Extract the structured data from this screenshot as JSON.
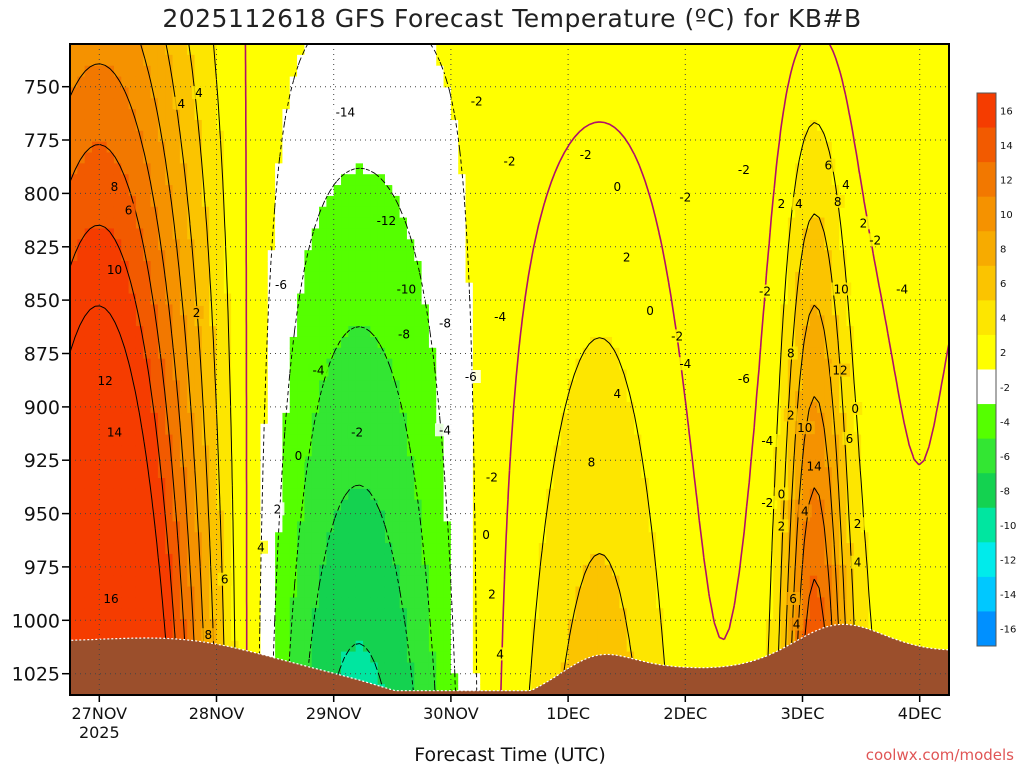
{
  "chart_data": {
    "type": "heatmap",
    "title": "2025112618 GFS Forecast Temperature (ºC) for KB#B",
    "xlabel": "Forecast Time (UTC)",
    "ylabel": "",
    "credit": "coolwx.com/models",
    "x_ticks": [
      {
        "label": "27NOV",
        "sub": "2025",
        "day": 0
      },
      {
        "label": "28NOV",
        "sub": "",
        "day": 1
      },
      {
        "label": "29NOV",
        "sub": "",
        "day": 2
      },
      {
        "label": "30NOV",
        "sub": "",
        "day": 3
      },
      {
        "label": "1DEC",
        "sub": "",
        "day": 4
      },
      {
        "label": "2DEC",
        "sub": "",
        "day": 5
      },
      {
        "label": "3DEC",
        "sub": "",
        "day": 6
      },
      {
        "label": "4DEC",
        "sub": "",
        "day": 7
      }
    ],
    "x_range_days": [
      -0.25,
      7.25
    ],
    "y_ticks": [
      750,
      775,
      800,
      825,
      850,
      875,
      900,
      925,
      950,
      975,
      1000,
      1025
    ],
    "y_range_hpa": [
      730,
      1035
    ],
    "y_inverted": true,
    "colorbar": {
      "labels": [
        16,
        14,
        12,
        10,
        8,
        6,
        4,
        2,
        -2,
        -4,
        -6,
        -8,
        -10,
        -12,
        -14,
        -16
      ],
      "colors": [
        "#f53c00",
        "#f25a00",
        "#f27800",
        "#f59200",
        "#f7ab00",
        "#fbc400",
        "#fde600",
        "#ffff00",
        "#ffffff",
        "#55ff00",
        "#33e633",
        "#14d250",
        "#00e6a0",
        "#00ebeb",
        "#00c8ff",
        "#0090ff"
      ]
    },
    "contour_labels": [
      {
        "t": 0.7,
        "p": 758,
        "v": "4"
      },
      {
        "t": 0.13,
        "p": 797,
        "v": "8"
      },
      {
        "t": 0.25,
        "p": 808,
        "v": "6"
      },
      {
        "t": 0.13,
        "p": 836,
        "v": "10"
      },
      {
        "t": 0.05,
        "p": 888,
        "v": "12"
      },
      {
        "t": 0.13,
        "p": 912,
        "v": "14"
      },
      {
        "t": 0.1,
        "p": 990,
        "v": "16"
      },
      {
        "t": 0.83,
        "p": 856,
        "v": "2"
      },
      {
        "t": 2.1,
        "p": 762,
        "v": "-14"
      },
      {
        "t": 2.45,
        "p": 813,
        "v": "-12"
      },
      {
        "t": 2.62,
        "p": 845,
        "v": "-10"
      },
      {
        "t": 2.6,
        "p": 866,
        "v": "-8"
      },
      {
        "t": 1.55,
        "p": 843,
        "v": "-6"
      },
      {
        "t": 1.87,
        "p": 883,
        "v": "-4"
      },
      {
        "t": 2.95,
        "p": 861,
        "v": "-8"
      },
      {
        "t": 3.42,
        "p": 858,
        "v": "-4"
      },
      {
        "t": 3.17,
        "p": 886,
        "v": "-6"
      },
      {
        "t": 3.22,
        "p": 757,
        "v": "-2"
      },
      {
        "t": 3.5,
        "p": 785,
        "v": "-2"
      },
      {
        "t": 2.95,
        "p": 911,
        "v": "-4"
      },
      {
        "t": 2.2,
        "p": 912,
        "v": "-2"
      },
      {
        "t": 1.7,
        "p": 923,
        "v": "0"
      },
      {
        "t": 1.52,
        "p": 948,
        "v": "2"
      },
      {
        "t": 1.38,
        "p": 966,
        "v": "4"
      },
      {
        "t": 1.07,
        "p": 981,
        "v": "6"
      },
      {
        "t": 0.93,
        "p": 1007,
        "v": "8"
      },
      {
        "t": 3.35,
        "p": 933,
        "v": "-2"
      },
      {
        "t": 3.3,
        "p": 960,
        "v": "0"
      },
      {
        "t": 3.35,
        "p": 988,
        "v": "2"
      },
      {
        "t": 3.42,
        "p": 1016,
        "v": "4"
      },
      {
        "t": 4.15,
        "p": 782,
        "v": "-2"
      },
      {
        "t": 4.42,
        "p": 797,
        "v": "0"
      },
      {
        "t": 4.5,
        "p": 830,
        "v": "2"
      },
      {
        "t": 4.42,
        "p": 894,
        "v": "4"
      },
      {
        "t": 4.2,
        "p": 926,
        "v": "8"
      },
      {
        "t": 4.7,
        "p": 855,
        "v": "0"
      },
      {
        "t": 4.93,
        "p": 867,
        "v": "-2"
      },
      {
        "t": 5.0,
        "p": 802,
        "v": "-2"
      },
      {
        "t": 5.0,
        "p": 880,
        "v": "-4"
      },
      {
        "t": 5.5,
        "p": 789,
        "v": "-2"
      },
      {
        "t": 5.5,
        "p": 887,
        "v": "-6"
      },
      {
        "t": 5.68,
        "p": 846,
        "v": "-2"
      },
      {
        "t": 5.7,
        "p": 916,
        "v": "-4"
      },
      {
        "t": 5.7,
        "p": 945,
        "v": "-2"
      },
      {
        "t": 5.82,
        "p": 941,
        "v": "0"
      },
      {
        "t": 5.82,
        "p": 956,
        "v": "2"
      },
      {
        "t": 5.82,
        "p": 805,
        "v": "2"
      },
      {
        "t": 5.97,
        "p": 805,
        "v": "4"
      },
      {
        "t": 5.9,
        "p": 875,
        "v": "8"
      },
      {
        "t": 5.9,
        "p": 904,
        "v": "2"
      },
      {
        "t": 6.02,
        "p": 910,
        "v": "10"
      },
      {
        "t": 6.1,
        "p": 928,
        "v": "14"
      },
      {
        "t": 5.95,
        "p": 1002,
        "v": "4"
      },
      {
        "t": 5.92,
        "p": 990,
        "v": "6"
      },
      {
        "t": 6.02,
        "p": 949,
        "v": "4"
      },
      {
        "t": 6.22,
        "p": 787,
        "v": "6"
      },
      {
        "t": 6.37,
        "p": 796,
        "v": "4"
      },
      {
        "t": 6.3,
        "p": 804,
        "v": "8"
      },
      {
        "t": 6.52,
        "p": 814,
        "v": "2"
      },
      {
        "t": 6.62,
        "p": 822,
        "v": "-2"
      },
      {
        "t": 6.33,
        "p": 845,
        "v": "10"
      },
      {
        "t": 6.32,
        "p": 883,
        "v": "12"
      },
      {
        "t": 6.4,
        "p": 915,
        "v": "6"
      },
      {
        "t": 6.45,
        "p": 901,
        "v": "0"
      },
      {
        "t": 6.47,
        "p": 955,
        "v": "2"
      },
      {
        "t": 6.47,
        "p": 973,
        "v": "4"
      },
      {
        "t": 6.85,
        "p": 845,
        "v": "-4"
      },
      {
        "t": 0.85,
        "p": 753,
        "v": "4"
      }
    ]
  }
}
